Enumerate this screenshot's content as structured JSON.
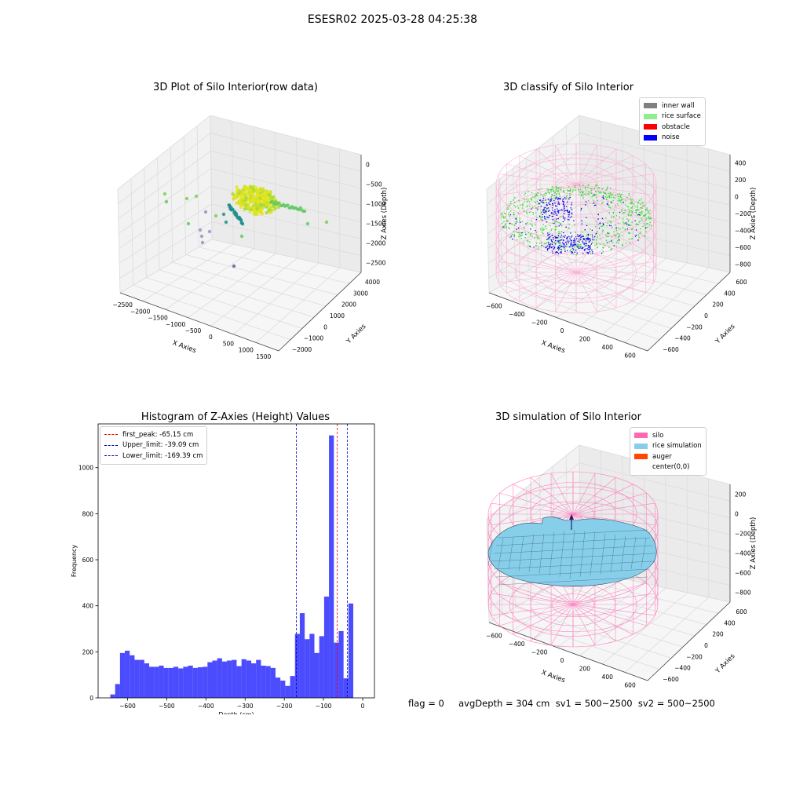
{
  "figure": {
    "suptitle": "ESESR02 2025-03-28 04:25:38",
    "bottom_text": "flag = 0     avgDepth = 304 cm  sv1 = 500~2500  sv2 = 500~2500"
  },
  "chart_data": [
    {
      "id": "raw",
      "type": "scatter",
      "title": "3D Plot of Silo Interior(row data)",
      "xlabel": "X Axies",
      "ylabel": "Y Axies",
      "zlabel": "Z Axies (Depth)",
      "x_ticks": [
        "−2500",
        "−2000",
        "−1500",
        "−1000",
        "−500",
        "0",
        "500",
        "1000",
        "1500"
      ],
      "y_ticks": [
        "−2000",
        "−1000",
        "0",
        "1000",
        "2000",
        "3000",
        "4000"
      ],
      "z_ticks": [
        "0",
        "−500",
        "−1000",
        "−1500",
        "−2000",
        "−2500"
      ],
      "colormap": "viridis"
    },
    {
      "id": "classify",
      "type": "scatter",
      "title": "3D classify of Silo Interior",
      "xlabel": "X Axies",
      "ylabel": "Y Axies",
      "zlabel": "Z Axies (Depth)",
      "x_ticks": [
        "−600",
        "−400",
        "−200",
        "0",
        "200",
        "400",
        "600"
      ],
      "y_ticks": [
        "−600",
        "−400",
        "−200",
        "0",
        "200",
        "400",
        "600"
      ],
      "z_ticks": [
        "400",
        "200",
        "0",
        "−200",
        "−400",
        "−600",
        "−800"
      ],
      "legend": [
        {
          "label": "inner wall",
          "color": "#808080"
        },
        {
          "label": "rice surface",
          "color": "#90ee90"
        },
        {
          "label": "obstacle",
          "color": "#ff0000"
        },
        {
          "label": "noise",
          "color": "#0000ff"
        }
      ]
    },
    {
      "id": "histogram",
      "type": "bar",
      "title": "Histogram of Z-Axies (Height) Values",
      "xlabel": "Depth (cm)",
      "ylabel": "Frequency",
      "xlim": [
        -675,
        30
      ],
      "ylim": [
        0,
        1190
      ],
      "x_ticks": [
        -600,
        -500,
        -400,
        -300,
        -200,
        -100,
        0
      ],
      "x_tick_labels": [
        "−600",
        "−500",
        "−400",
        "−300",
        "−200",
        "−100",
        "0"
      ],
      "y_ticks": [
        0,
        200,
        400,
        600,
        800,
        1000
      ],
      "bin_width": 12.4,
      "bins_start": -644,
      "values": [
        15,
        60,
        195,
        205,
        185,
        165,
        165,
        150,
        135,
        135,
        140,
        130,
        130,
        135,
        128,
        135,
        140,
        130,
        133,
        135,
        155,
        162,
        172,
        158,
        162,
        165,
        138,
        168,
        162,
        150,
        165,
        140,
        138,
        130,
        88,
        75,
        52,
        95,
        278,
        368,
        255,
        278,
        195,
        268,
        440,
        1140,
        240,
        290,
        85,
        410
      ],
      "bar_color": "#0000ff",
      "lines": [
        {
          "label": "first_peak: -65.15 cm",
          "x": -65.15,
          "color": "#ff0000"
        },
        {
          "label": "Upper_limit: -39.09 cm",
          "x": -39.09,
          "color": "#0000cc"
        },
        {
          "label": "Lower_limit: -169.39 cm",
          "x": -169.39,
          "color": "#0000cc"
        }
      ]
    },
    {
      "id": "simulation",
      "type": "scatter",
      "title": "3D simulation of Silo Interior",
      "xlabel": "X Axies",
      "ylabel": "Y Axies",
      "zlabel": "Z Axies (Depth)",
      "x_ticks": [
        "−600",
        "−400",
        "−200",
        "0",
        "200",
        "400",
        "600"
      ],
      "y_ticks": [
        "−600",
        "−400",
        "−200",
        "0",
        "200",
        "400",
        "600"
      ],
      "z_ticks": [
        "200",
        "0",
        "−200",
        "−400",
        "−600",
        "−800"
      ],
      "legend": [
        {
          "label": "silo",
          "color": "#ff69b4"
        },
        {
          "label": "rice simulation",
          "color": "#87ceeb"
        },
        {
          "label": "auger",
          "color": "#ff4500"
        },
        {
          "label": "center(0,0)",
          "color": ""
        }
      ]
    }
  ]
}
